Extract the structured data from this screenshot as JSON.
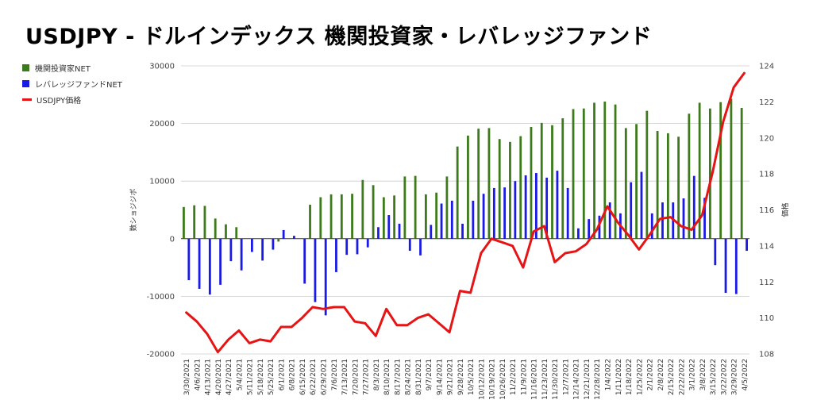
{
  "colors": {
    "institutional": "#3d7a1c",
    "leveraged": "#1a1ae6",
    "price": "#e61414",
    "grid": "#cccccc",
    "zero": "#333333"
  },
  "chart_data": {
    "type": "bar",
    "title": "USDJPY - ドルインデックス 機関投資家・レバレッジファンド",
    "ylabel": "数ショジジボ",
    "y2label": "価格",
    "ylim": [
      -20000,
      30000
    ],
    "yticks": [
      -20000,
      -10000,
      0,
      10000,
      20000,
      30000
    ],
    "y2lim": [
      108,
      124
    ],
    "y2ticks": [
      108,
      110,
      112,
      114,
      116,
      118,
      120,
      122,
      124
    ],
    "grid": true,
    "legend_position": "top-left",
    "categories": [
      "3/30/2021",
      "4/6/2021",
      "4/13/2021",
      "4/20/2021",
      "4/27/2021",
      "5/4/2021",
      "5/11/2021",
      "5/18/2021",
      "5/25/2021",
      "6/1/2021",
      "6/8/2021",
      "6/15/2021",
      "6/22/2021",
      "6/29/2021",
      "7/6/2021",
      "7/13/2021",
      "7/20/2021",
      "7/27/2021",
      "8/3/2021",
      "8/10/2021",
      "8/17/2021",
      "8/24/2021",
      "8/31/2021",
      "9/7/2021",
      "9/14/2021",
      "9/21/2021",
      "9/28/2021",
      "10/5/2021",
      "10/12/2021",
      "10/19/2021",
      "10/26/2021",
      "11/2/2021",
      "11/9/2021",
      "11/16/2021",
      "11/23/2021",
      "11/30/2021",
      "12/7/2021",
      "12/14/2021",
      "12/21/2021",
      "12/28/2021",
      "1/4/2022",
      "1/11/2022",
      "1/18/2022",
      "1/25/2022",
      "2/1/2022",
      "2/8/2022",
      "2/15/2022",
      "2/22/2022",
      "3/1/2022",
      "3/8/2022",
      "3/15/2022",
      "3/22/2022",
      "3/29/2022",
      "4/5/2022"
    ],
    "series": [
      {
        "name": "機関投資家NET",
        "kind": "bar",
        "values": [
          5500,
          5800,
          5700,
          3500,
          2500,
          2000,
          0,
          0,
          0,
          -500,
          0,
          0,
          5900,
          7200,
          7700,
          7700,
          7800,
          10200,
          9300,
          7200,
          7500,
          10800,
          10900,
          7700,
          8000,
          10800,
          16000,
          17900,
          19100,
          19200,
          17300,
          16800,
          17800,
          19400,
          20100,
          19700,
          20900,
          22500,
          22600,
          23600,
          23800,
          23300,
          19200,
          19900,
          22200,
          18700,
          18300,
          17700,
          21700,
          23600,
          22600,
          23700,
          24300,
          22700
        ]
      },
      {
        "name": "レバレッジファンドNET",
        "kind": "bar",
        "values": [
          -7200,
          -8700,
          -9700,
          -8000,
          -3900,
          -5500,
          -2300,
          -3800,
          -1900,
          1500,
          500,
          -7800,
          -11000,
          -13300,
          -5800,
          -2800,
          -2700,
          -1500,
          2000,
          4100,
          2600,
          -2100,
          -2900,
          2400,
          6100,
          6600,
          2600,
          6600,
          7800,
          8800,
          8900,
          10000,
          11000,
          11400,
          10600,
          11800,
          8800,
          1800,
          3400,
          4000,
          6300,
          4400,
          9800,
          11600,
          4400,
          6300,
          6300,
          7000,
          10900,
          7100,
          -4600,
          -9400,
          -9600,
          -2100
        ]
      },
      {
        "name": "USDJPY価格",
        "kind": "line",
        "axis": "right",
        "values": [
          110.3,
          109.8,
          109.1,
          108.1,
          108.8,
          109.3,
          108.6,
          108.8,
          108.7,
          109.5,
          109.5,
          110.0,
          110.6,
          110.5,
          110.6,
          110.6,
          109.8,
          109.7,
          109.0,
          110.5,
          109.6,
          109.6,
          110.0,
          110.2,
          109.7,
          109.2,
          111.5,
          111.4,
          113.6,
          114.4,
          114.2,
          114.0,
          112.8,
          114.8,
          115.1,
          113.1,
          113.6,
          113.7,
          114.1,
          114.9,
          116.2,
          115.3,
          114.6,
          113.8,
          114.6,
          115.5,
          115.6,
          115.1,
          114.9,
          115.7,
          118.1,
          120.9,
          122.8,
          123.6
        ]
      }
    ]
  }
}
